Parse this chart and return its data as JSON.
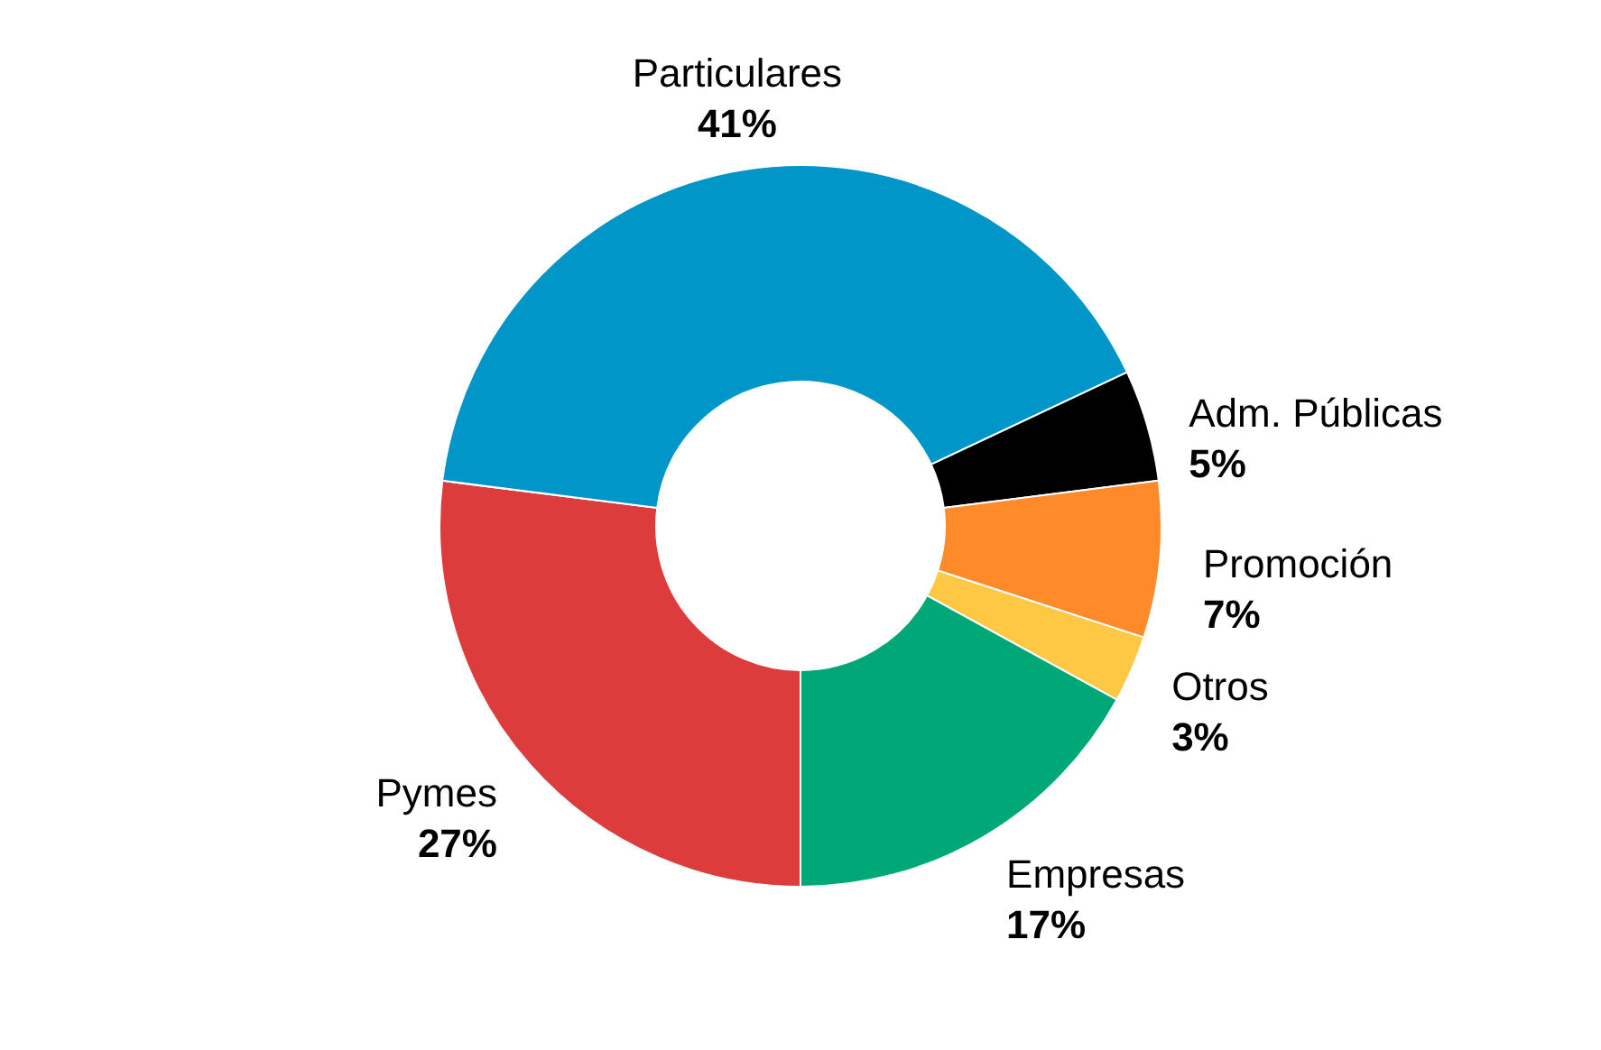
{
  "chart_data": {
    "type": "donut",
    "categories": [
      "Pymes",
      "Particulares",
      "Adm. Públicas",
      "Promoción",
      "Otros",
      "Empresas"
    ],
    "values": [
      27,
      41,
      5,
      7,
      3,
      17
    ],
    "colors": [
      "#dc3c3c",
      "#0096c8",
      "#000000",
      "#ff8a2a",
      "#ffc844",
      "#00a878"
    ],
    "value_labels": [
      "27%",
      "41%",
      "5%",
      "7%",
      "3%",
      "17%"
    ]
  }
}
